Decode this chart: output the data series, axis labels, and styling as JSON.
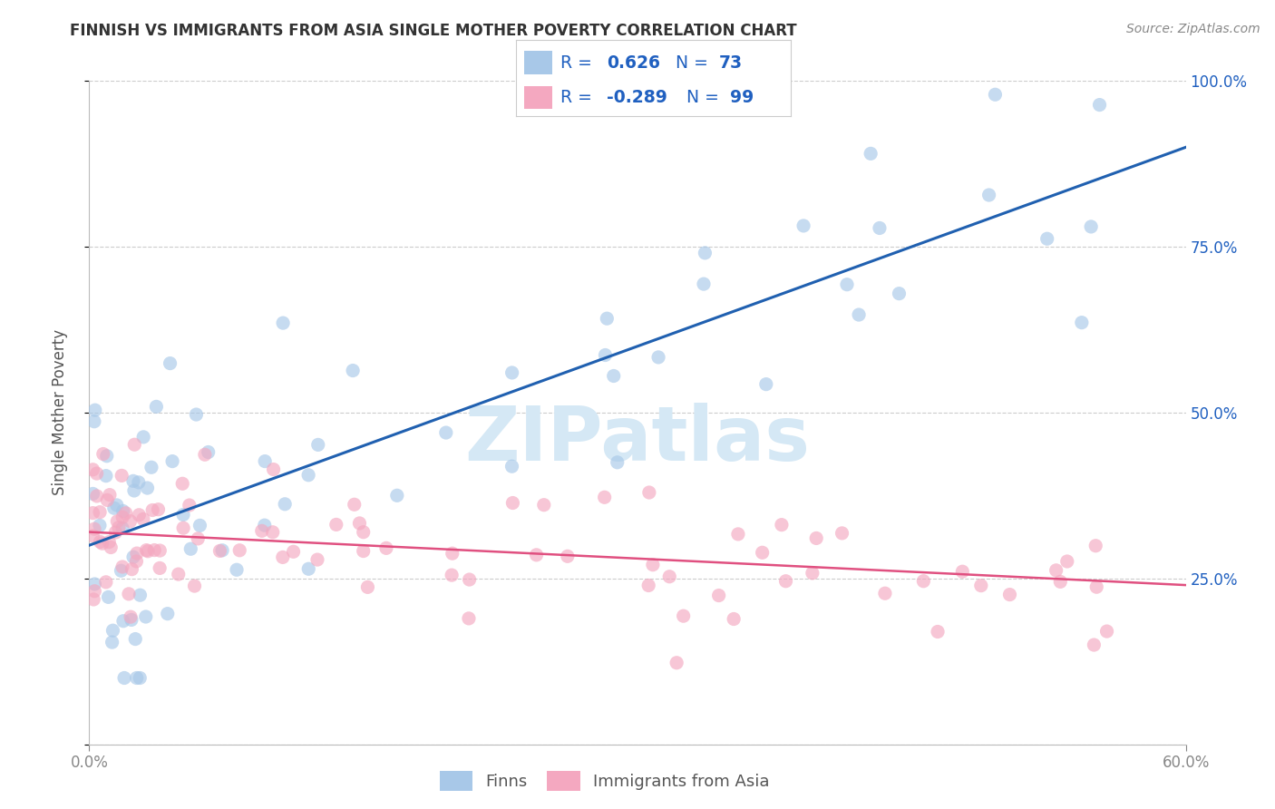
{
  "title": "FINNISH VS IMMIGRANTS FROM ASIA SINGLE MOTHER POVERTY CORRELATION CHART",
  "source": "Source: ZipAtlas.com",
  "ylabel": "Single Mother Poverty",
  "r_finns": 0.626,
  "n_finns": 73,
  "r_asia": -0.289,
  "n_asia": 99,
  "legend_label_finns": "Finns",
  "legend_label_asia": "Immigrants from Asia",
  "blue_scatter_color": "#a8c8e8",
  "pink_scatter_color": "#f4a8c0",
  "blue_line_color": "#2060b0",
  "pink_line_color": "#e05080",
  "legend_text_color": "#2060c0",
  "watermark_text": "ZIPatlas",
  "watermark_color": "#d5e8f5",
  "xlim": [
    0,
    60
  ],
  "ylim": [
    0,
    100
  ],
  "finns_line_x0": 0,
  "finns_line_y0": 30,
  "finns_line_x1": 60,
  "finns_line_y1": 90,
  "asia_line_x0": 0,
  "asia_line_y0": 32,
  "asia_line_x1": 60,
  "asia_line_y1": 24,
  "dot_size": 120,
  "dot_alpha": 0.65
}
